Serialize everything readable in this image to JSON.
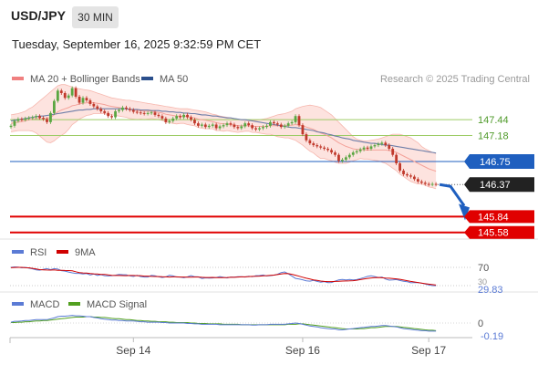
{
  "header": {
    "symbol": "USD/JPY",
    "timeframe": "30 MIN",
    "timestamp": "Tuesday, September 16, 2025 9:32:59 PM CET"
  },
  "legend": {
    "bollinger": {
      "label": "MA 20 + Bollinger Bands",
      "color": "#f08080"
    },
    "ma50": {
      "label": "MA 50",
      "color": "#2b4f8c"
    },
    "credit": "Research © 2025 Trading Central"
  },
  "colors": {
    "up": "#5aa642",
    "down": "#c0392b",
    "band_fill": "#fde3df",
    "level_green": "#9ccc65",
    "level_blue": "#1f5fbf",
    "level_red": "#e00000",
    "arrow": "#1f5fbf",
    "rsi": "#5b7bd5",
    "rsi_ma": "#d00000",
    "macd": "#5b7bd5",
    "macd_signal": "#52a020"
  },
  "chart_data": [
    {
      "type": "candlestick",
      "ylim": [
        145.5,
        148.0
      ],
      "levels": [
        {
          "value": 147.44,
          "label": "147.44",
          "style": "green"
        },
        {
          "value": 147.18,
          "label": "147.18",
          "style": "green"
        },
        {
          "value": 146.75,
          "label": "146.75",
          "style": "blue"
        },
        {
          "value": 146.37,
          "label": "146.37",
          "style": "current"
        },
        {
          "value": 145.84,
          "label": "145.84",
          "style": "red"
        },
        {
          "value": 145.58,
          "label": "145.58",
          "style": "red"
        }
      ],
      "x_ticks": [
        {
          "index": 34,
          "label": "Sep 14"
        },
        {
          "index": 81,
          "label": "Sep 16"
        },
        {
          "index": 116,
          "label": "Sep 17"
        }
      ],
      "close": [
        147.34,
        147.42,
        147.45,
        147.44,
        147.46,
        147.47,
        147.48,
        147.5,
        147.47,
        147.45,
        147.4,
        147.55,
        147.75,
        147.92,
        147.88,
        147.8,
        147.84,
        147.96,
        147.82,
        147.72,
        147.8,
        147.76,
        147.7,
        147.66,
        147.62,
        147.58,
        147.55,
        147.5,
        147.48,
        147.58,
        147.6,
        147.64,
        147.62,
        147.6,
        147.57,
        147.56,
        147.55,
        147.54,
        147.55,
        147.56,
        147.52,
        147.5,
        147.46,
        147.4,
        147.42,
        147.46,
        147.5,
        147.48,
        147.52,
        147.48,
        147.44,
        147.38,
        147.34,
        147.36,
        147.32,
        147.34,
        147.36,
        147.3,
        147.33,
        147.35,
        147.38,
        147.36,
        147.32,
        147.3,
        147.33,
        147.38,
        147.35,
        147.3,
        147.28,
        147.3,
        147.32,
        147.34,
        147.4,
        147.38,
        147.36,
        147.32,
        147.34,
        147.38,
        147.4,
        147.5,
        147.35,
        147.2,
        147.1,
        147.05,
        147.02,
        147.0,
        146.98,
        146.96,
        146.94,
        146.9,
        146.86,
        146.76,
        146.78,
        146.82,
        146.86,
        146.9,
        146.92,
        146.95,
        146.98,
        146.96,
        147.0,
        147.02,
        147.04,
        147.06,
        147.02,
        146.96,
        146.86,
        146.72,
        146.6,
        146.54,
        146.52,
        146.5,
        146.46,
        146.42,
        146.4,
        146.38,
        146.37,
        146.38,
        146.37
      ],
      "ma20": [
        147.38,
        147.39,
        147.4,
        147.41,
        147.42,
        147.44,
        147.45,
        147.46,
        147.46,
        147.46,
        147.46,
        147.48,
        147.52,
        147.57,
        147.6,
        147.62,
        147.64,
        147.67,
        147.68,
        147.7,
        147.71,
        147.72,
        147.72,
        147.72,
        147.71,
        147.7,
        147.69,
        147.67,
        147.66,
        147.65,
        147.64,
        147.63,
        147.62,
        147.61,
        147.6,
        147.59,
        147.59,
        147.58,
        147.58,
        147.58,
        147.57,
        147.56,
        147.55,
        147.53,
        147.52,
        147.51,
        147.5,
        147.5,
        147.5,
        147.49,
        147.48,
        147.47,
        147.45,
        147.44,
        147.43,
        147.42,
        147.41,
        147.39,
        147.38,
        147.37,
        147.37,
        147.36,
        147.35,
        147.34,
        147.34,
        147.34,
        147.34,
        147.33,
        147.33,
        147.33,
        147.33,
        147.33,
        147.34,
        147.34,
        147.34,
        147.34,
        147.34,
        147.35,
        147.35,
        147.36,
        147.35,
        147.34,
        147.32,
        147.3,
        147.28,
        147.25,
        147.22,
        147.2,
        147.17,
        147.14,
        147.1,
        147.06,
        147.03,
        147.0,
        146.98,
        146.96,
        146.95,
        146.95,
        146.94,
        146.94,
        146.94,
        146.94,
        146.94,
        146.94,
        146.94,
        146.93,
        146.92,
        146.9,
        146.87,
        146.84,
        146.81,
        146.78,
        146.75,
        146.72,
        146.69,
        146.66,
        146.63,
        146.61,
        146.59
      ],
      "bb_upper": [
        147.52,
        147.53,
        147.54,
        147.56,
        147.58,
        147.62,
        147.65,
        147.7,
        147.75,
        147.8,
        147.85,
        147.9,
        147.95,
        148.0,
        148.02,
        148.02,
        148.0,
        147.98,
        147.96,
        147.95,
        147.94,
        147.93,
        147.92,
        147.9,
        147.88,
        147.86,
        147.84,
        147.82,
        147.8,
        147.79,
        147.78,
        147.77,
        147.76,
        147.76,
        147.75,
        147.74,
        147.73,
        147.72,
        147.71,
        147.7,
        147.69,
        147.68,
        147.67,
        147.66,
        147.65,
        147.64,
        147.63,
        147.62,
        147.62,
        147.62,
        147.61,
        147.6,
        147.59,
        147.58,
        147.57,
        147.55,
        147.53,
        147.52,
        147.5,
        147.49,
        147.48,
        147.47,
        147.46,
        147.45,
        147.44,
        147.43,
        147.43,
        147.43,
        147.43,
        147.44,
        147.45,
        147.46,
        147.48,
        147.5,
        147.52,
        147.53,
        147.54,
        147.56,
        147.58,
        147.62,
        147.64,
        147.66,
        147.67,
        147.68,
        147.67,
        147.66,
        147.64,
        147.6,
        147.56,
        147.52,
        147.46,
        147.4,
        147.34,
        147.28,
        147.22,
        147.16,
        147.12,
        147.1,
        147.09,
        147.09,
        147.1,
        147.11,
        147.12,
        147.14,
        147.16,
        147.18,
        147.2,
        147.2,
        147.2,
        147.18,
        147.16,
        147.14,
        147.1,
        147.06,
        147.0,
        146.96,
        146.93,
        146.9,
        146.88
      ],
      "bb_lower": [
        147.24,
        147.25,
        147.26,
        147.26,
        147.26,
        147.26,
        147.25,
        147.22,
        147.17,
        147.12,
        147.07,
        147.06,
        147.09,
        147.14,
        147.18,
        147.22,
        147.28,
        147.36,
        147.4,
        147.45,
        147.48,
        147.51,
        147.52,
        147.54,
        147.54,
        147.54,
        147.54,
        147.52,
        147.52,
        147.51,
        147.5,
        147.49,
        147.48,
        147.46,
        147.45,
        147.44,
        147.45,
        147.44,
        147.45,
        147.46,
        147.45,
        147.44,
        147.43,
        147.4,
        147.39,
        147.38,
        147.37,
        147.38,
        147.38,
        147.36,
        147.35,
        147.34,
        147.31,
        147.3,
        147.29,
        147.29,
        147.29,
        147.26,
        147.26,
        147.25,
        147.26,
        147.25,
        147.24,
        147.23,
        147.24,
        147.25,
        147.25,
        147.23,
        147.23,
        147.22,
        147.21,
        147.2,
        147.2,
        147.18,
        147.16,
        147.15,
        147.14,
        147.14,
        147.12,
        147.1,
        147.06,
        147.02,
        146.97,
        146.92,
        146.89,
        146.84,
        146.8,
        146.8,
        146.78,
        146.76,
        146.74,
        146.72,
        146.72,
        146.72,
        146.74,
        146.76,
        146.78,
        146.8,
        146.79,
        146.79,
        146.78,
        146.77,
        146.76,
        146.74,
        146.72,
        146.68,
        146.64,
        146.6,
        146.54,
        146.5,
        146.46,
        146.42,
        146.4,
        146.38,
        146.38,
        146.36,
        146.33,
        146.32,
        146.3
      ],
      "ma50": [
        147.42,
        147.43,
        147.44,
        147.45,
        147.46,
        147.47,
        147.48,
        147.49,
        147.5,
        147.5,
        147.51,
        147.52,
        147.53,
        147.54,
        147.55,
        147.56,
        147.57,
        147.58,
        147.59,
        147.6,
        147.6,
        147.61,
        147.61,
        147.62,
        147.62,
        147.62,
        147.62,
        147.62,
        147.62,
        147.62,
        147.62,
        147.62,
        147.62,
        147.61,
        147.61,
        147.61,
        147.6,
        147.6,
        147.6,
        147.59,
        147.59,
        147.59,
        147.58,
        147.58,
        147.57,
        147.57,
        147.56,
        147.56,
        147.55,
        147.55,
        147.54,
        147.54,
        147.53,
        147.52,
        147.52,
        147.51,
        147.5,
        147.5,
        147.49,
        147.48,
        147.47,
        147.47,
        147.46,
        147.45,
        147.44,
        147.44,
        147.43,
        147.42,
        147.41,
        147.4,
        147.39,
        147.38,
        147.37,
        147.36,
        147.35,
        147.34,
        147.33,
        147.32,
        147.31,
        147.31,
        147.3,
        147.29,
        147.28,
        147.27,
        147.26,
        147.24,
        147.23,
        147.22,
        147.2,
        147.19,
        147.17,
        147.16,
        147.14,
        147.13,
        147.12,
        147.1,
        147.09,
        147.08,
        147.07,
        147.06,
        147.05,
        147.05,
        147.04,
        147.03,
        147.02,
        147.02,
        147.01,
        147.0,
        146.99,
        146.98,
        146.97,
        146.96,
        146.95,
        146.94,
        146.93,
        146.92,
        146.91,
        146.9,
        146.89
      ],
      "forecast_arrow": {
        "from": 146.37,
        "to": 145.84
      }
    },
    {
      "type": "line",
      "panel": "RSI",
      "legend": [
        "RSI",
        "9MA"
      ],
      "ticks": [
        "70",
        "30"
      ],
      "last_value": "29.83",
      "ylim": [
        20,
        80
      ],
      "rsi": [
        70.0,
        71.0,
        70.4,
        69.0,
        70.0,
        68.2,
        66.7,
        64.6,
        63.9,
        65.8,
        67.1,
        65.0,
        67.3,
        66.2,
        62.8,
        61.7,
        59.8,
        58.0,
        56.8,
        56.8,
        55.6,
        56.5,
        53.3,
        55.5,
        52.4,
        54.0,
        51.9,
        51.2,
        51.7,
        52.9,
        54.4,
        54.0,
        53.9,
        51.5,
        50.0,
        52.7,
        49.8,
        48.7,
        48.9,
        52.4,
        51.6,
        49.4,
        47.8,
        49.1,
        52.6,
        51.1,
        48.8,
        48.9,
        47.2,
        49.2,
        52.0,
        49.5,
        49.1,
        45.6,
        47.0,
        46.5,
        46.7,
        47.7,
        49.8,
        48.1,
        46.8,
        48.8,
        48.5,
        49.4,
        49.5,
        48.8,
        50.6,
        49.4,
        51.8,
        52.0,
        53.2,
        51.2,
        51.7,
        53.0,
        54.8,
        58.6,
        60.0,
        55.9,
        50.8,
        45.9,
        44.5,
        42.7,
        40.6,
        39.8,
        41.4,
        39.3,
        37.5,
        38.9,
        36.6,
        36.7,
        39.7,
        42.5,
        43.4,
        42.5,
        43.4,
        42.6,
        43.1,
        45.5,
        47.6,
        50.3,
        51.4,
        49.7,
        47.8,
        48.8,
        44.4,
        42.0,
        42.4,
        43.2,
        41.2,
        39.4,
        38.6,
        36.2,
        36.8,
        36.5,
        35.5,
        33.5,
        31.4,
        30.0,
        29.83
      ],
      "ma9": [
        69.3,
        69.9,
        70.0,
        70.0,
        69.2,
        69.0,
        67.7,
        66.4,
        65.0,
        64.6,
        64.2,
        64.0,
        64.6,
        63.4,
        63.6,
        63.3,
        63.0,
        62.4,
        60.4,
        58.6,
        57.9,
        57.6,
        56.4,
        55.7,
        55.5,
        54.6,
        54.6,
        53.4,
        52.6,
        52.3,
        52.2,
        52.0,
        51.9,
        52.3,
        52.1,
        51.9,
        51.7,
        50.8,
        50.7,
        50.3,
        50.0,
        49.8,
        49.4,
        49.2,
        48.9,
        49.2,
        49.2,
        48.9,
        48.7,
        48.4,
        48.6,
        48.8,
        48.8,
        48.3,
        47.8,
        47.9,
        48.0,
        47.6,
        47.5,
        47.6,
        47.7,
        48.1,
        48.3,
        48.8,
        49.2,
        49.3,
        49.8,
        50.1,
        50.5,
        50.8,
        51.4,
        51.9,
        52.4,
        53.0,
        54.1,
        55.4,
        56.4,
        56.2,
        54.7,
        52.8,
        50.6,
        48.5,
        46.1,
        44.4,
        42.6,
        41.4,
        40.0,
        39.2,
        38.8,
        38.9,
        39.1,
        39.5,
        40.0,
        40.2,
        40.5,
        40.9,
        41.8,
        43.2,
        44.6,
        45.8,
        46.9,
        47.5,
        47.7,
        47.3,
        46.6,
        46.1,
        45.6,
        44.7,
        43.7,
        42.3,
        40.8,
        39.3,
        38.0,
        36.7,
        35.5,
        34.3,
        33.3,
        32.3,
        31.3
      ]
    },
    {
      "type": "line",
      "panel": "MACD",
      "legend": [
        "MACD",
        "MACD Signal"
      ],
      "ticks": [
        "0"
      ],
      "last_value": "-0.19",
      "ylim": [
        -0.3,
        0.3
      ],
      "macd": [
        0.02,
        0.04,
        0.04,
        0.05,
        0.06,
        0.06,
        0.07,
        0.08,
        0.08,
        0.08,
        0.08,
        0.1,
        0.12,
        0.15,
        0.16,
        0.16,
        0.17,
        0.18,
        0.17,
        0.17,
        0.16,
        0.15,
        0.15,
        0.13,
        0.12,
        0.1,
        0.09,
        0.08,
        0.07,
        0.07,
        0.06,
        0.06,
        0.05,
        0.05,
        0.05,
        0.04,
        0.03,
        0.03,
        0.02,
        0.02,
        0.02,
        0.02,
        0.01,
        0.01,
        0.0,
        0.0,
        0.0,
        0.0,
        0.0,
        -0.01,
        -0.01,
        -0.02,
        -0.02,
        -0.03,
        -0.03,
        -0.03,
        -0.03,
        -0.03,
        -0.04,
        -0.04,
        -0.04,
        -0.04,
        -0.04,
        -0.04,
        -0.04,
        -0.04,
        -0.04,
        -0.05,
        -0.05,
        -0.04,
        -0.04,
        -0.04,
        -0.03,
        -0.03,
        -0.03,
        -0.03,
        -0.03,
        -0.02,
        -0.01,
        0.0,
        -0.01,
        -0.03,
        -0.05,
        -0.07,
        -0.08,
        -0.09,
        -0.11,
        -0.12,
        -0.13,
        -0.14,
        -0.14,
        -0.16,
        -0.16,
        -0.15,
        -0.14,
        -0.13,
        -0.12,
        -0.11,
        -0.1,
        -0.09,
        -0.08,
        -0.08,
        -0.07,
        -0.06,
        -0.06,
        -0.07,
        -0.08,
        -0.09,
        -0.11,
        -0.13,
        -0.14,
        -0.15,
        -0.16,
        -0.17,
        -0.18,
        -0.18,
        -0.19,
        -0.19,
        -0.19
      ],
      "signal": [
        0.01,
        0.01,
        0.02,
        0.02,
        0.03,
        0.03,
        0.04,
        0.05,
        0.05,
        0.06,
        0.06,
        0.07,
        0.08,
        0.09,
        0.1,
        0.11,
        0.12,
        0.13,
        0.14,
        0.14,
        0.14,
        0.15,
        0.15,
        0.14,
        0.14,
        0.13,
        0.13,
        0.12,
        0.11,
        0.1,
        0.1,
        0.09,
        0.08,
        0.08,
        0.07,
        0.06,
        0.06,
        0.05,
        0.05,
        0.04,
        0.04,
        0.03,
        0.03,
        0.03,
        0.02,
        0.02,
        0.01,
        0.01,
        0.01,
        0.01,
        0.0,
        0.0,
        -0.01,
        -0.01,
        -0.01,
        -0.02,
        -0.02,
        -0.02,
        -0.02,
        -0.03,
        -0.03,
        -0.03,
        -0.03,
        -0.03,
        -0.04,
        -0.04,
        -0.04,
        -0.04,
        -0.04,
        -0.04,
        -0.04,
        -0.04,
        -0.04,
        -0.04,
        -0.04,
        -0.04,
        -0.04,
        -0.03,
        -0.03,
        -0.03,
        -0.02,
        -0.02,
        -0.03,
        -0.04,
        -0.05,
        -0.06,
        -0.07,
        -0.08,
        -0.09,
        -0.1,
        -0.11,
        -0.12,
        -0.13,
        -0.14,
        -0.14,
        -0.14,
        -0.14,
        -0.13,
        -0.13,
        -0.12,
        -0.11,
        -0.11,
        -0.1,
        -0.09,
        -0.08,
        -0.08,
        -0.08,
        -0.08,
        -0.09,
        -0.1,
        -0.11,
        -0.12,
        -0.13,
        -0.14,
        -0.15,
        -0.16,
        -0.17,
        -0.17,
        -0.18
      ]
    }
  ]
}
